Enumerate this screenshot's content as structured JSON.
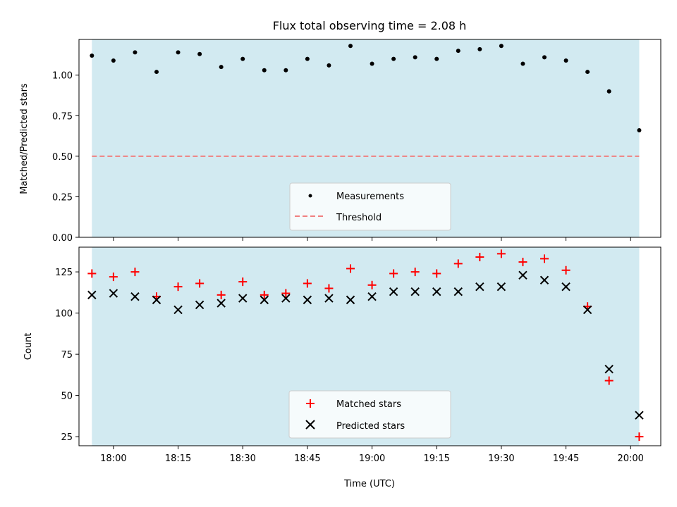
{
  "chart_data": [
    {
      "type": "scatter",
      "title": "Flux total observing time = 2.08 h",
      "xlabel": "",
      "ylabel": "Matched/Predicted stars",
      "ylim": [
        0,
        1.22
      ],
      "yticks": [
        "0.00",
        "0.25",
        "0.50",
        "0.75",
        "1.00"
      ],
      "grid": false,
      "legend_position": "bottom-center",
      "shaded_interval": [
        "17:55",
        "20:02"
      ],
      "shade_color": "#add8e6",
      "series": [
        {
          "name": "Measurements",
          "marker": "dot",
          "color": "#000000",
          "x": [
            "17:55",
            "18:00",
            "18:05",
            "18:10",
            "18:15",
            "18:20",
            "18:25",
            "18:30",
            "18:35",
            "18:40",
            "18:45",
            "18:50",
            "18:55",
            "19:00",
            "19:05",
            "19:10",
            "19:15",
            "19:20",
            "19:25",
            "19:30",
            "19:35",
            "19:40",
            "19:45",
            "19:50",
            "19:55",
            "20:02"
          ],
          "y": [
            1.12,
            1.09,
            1.14,
            1.02,
            1.14,
            1.13,
            1.05,
            1.1,
            1.03,
            1.03,
            1.1,
            1.06,
            1.18,
            1.07,
            1.1,
            1.11,
            1.1,
            1.15,
            1.16,
            1.18,
            1.07,
            1.11,
            1.09,
            1.02,
            0.9,
            0.66
          ]
        },
        {
          "name": "Threshold",
          "style": "dashed",
          "color": "#f08080",
          "x": [
            "17:55",
            "20:02"
          ],
          "y": [
            0.5,
            0.5
          ]
        }
      ]
    },
    {
      "type": "scatter",
      "title": "",
      "xlabel": "Time (UTC)",
      "ylabel": "Count",
      "ylim": [
        19.5,
        140
      ],
      "yticks": [
        "25",
        "50",
        "75",
        "100",
        "125"
      ],
      "xticks": [
        "18:00",
        "18:15",
        "18:30",
        "18:45",
        "19:00",
        "19:15",
        "19:30",
        "19:45",
        "20:00"
      ],
      "grid": false,
      "legend_position": "bottom-center",
      "shaded_interval": [
        "17:55",
        "20:02"
      ],
      "shade_color": "#add8e6",
      "series": [
        {
          "name": "Matched stars",
          "marker": "plus",
          "color": "#ff0000",
          "x": [
            "17:55",
            "18:00",
            "18:05",
            "18:10",
            "18:15",
            "18:20",
            "18:25",
            "18:30",
            "18:35",
            "18:40",
            "18:45",
            "18:50",
            "18:55",
            "19:00",
            "19:05",
            "19:10",
            "19:15",
            "19:20",
            "19:25",
            "19:30",
            "19:35",
            "19:40",
            "19:45",
            "19:50",
            "19:55",
            "20:02"
          ],
          "y": [
            124,
            122,
            125,
            110,
            116,
            118,
            111,
            119,
            111,
            112,
            118,
            115,
            127,
            117,
            124,
            125,
            124,
            130,
            134,
            136,
            131,
            133,
            126,
            104,
            59,
            25
          ]
        },
        {
          "name": "Predicted stars",
          "marker": "x",
          "color": "#000000",
          "x": [
            "17:55",
            "18:00",
            "18:05",
            "18:10",
            "18:15",
            "18:20",
            "18:25",
            "18:30",
            "18:35",
            "18:40",
            "18:45",
            "18:50",
            "18:55",
            "19:00",
            "19:05",
            "19:10",
            "19:15",
            "19:20",
            "19:25",
            "19:30",
            "19:35",
            "19:40",
            "19:45",
            "19:50",
            "19:55",
            "20:02"
          ],
          "y": [
            111,
            112,
            110,
            108,
            102,
            105,
            106,
            109,
            108,
            109,
            108,
            109,
            108,
            110,
            113,
            113,
            113,
            113,
            116,
            116,
            123,
            120,
            116,
            102,
            66,
            38
          ]
        }
      ]
    }
  ]
}
